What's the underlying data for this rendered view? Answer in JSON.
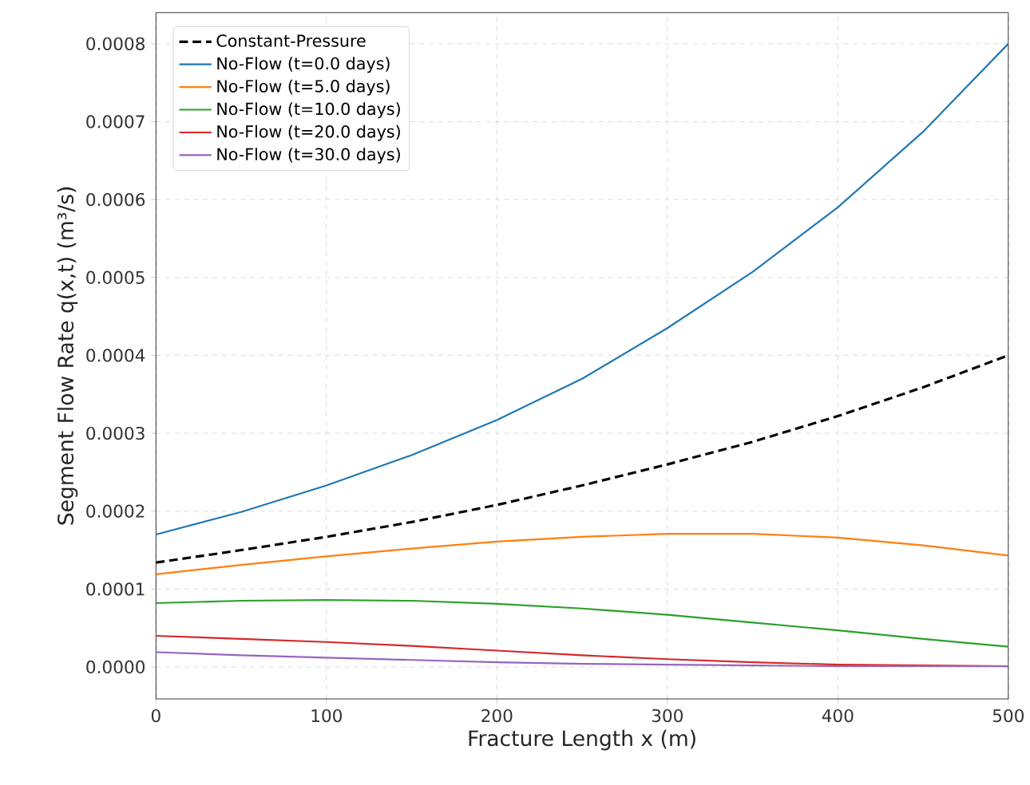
{
  "chart_data": {
    "type": "line",
    "xlabel": "Fracture Length x (m)",
    "ylabel": "Segment Flow Rate q(x,t) (m³/s)",
    "x": [
      0,
      50,
      100,
      150,
      200,
      250,
      300,
      350,
      400,
      450,
      500
    ],
    "series": [
      {
        "name": "Constant-Pressure",
        "color": "#000000",
        "line_style": "dashed",
        "values": [
          0.000134,
          0.00015,
          0.000167,
          0.000186,
          0.000208,
          0.000233,
          0.00026,
          0.000289,
          0.000322,
          0.000359,
          0.0004
        ]
      },
      {
        "name": "No-Flow (t=0.0 days)",
        "color": "#1f77b4",
        "values": [
          0.00017,
          0.000199,
          0.000233,
          0.000272,
          0.000317,
          0.00037,
          0.000435,
          0.000507,
          0.00059,
          0.000687,
          0.0008
        ]
      },
      {
        "name": "No-Flow (t=5.0 days)",
        "color": "#ff7f0e",
        "values": [
          0.000119,
          0.000131,
          0.000142,
          0.000152,
          0.000161,
          0.000167,
          0.000171,
          0.000171,
          0.000166,
          0.000156,
          0.000143
        ]
      },
      {
        "name": "No-Flow (t=10.0 days)",
        "color": "#2ca02c",
        "values": [
          8.2e-05,
          8.5e-05,
          8.6e-05,
          8.5e-05,
          8.1e-05,
          7.5e-05,
          6.7e-05,
          5.7e-05,
          4.7e-05,
          3.6e-05,
          2.6e-05
        ]
      },
      {
        "name": "No-Flow (t=20.0 days)",
        "color": "#d62728",
        "values": [
          4e-05,
          3.6e-05,
          3.2e-05,
          2.7e-05,
          2.1e-05,
          1.5e-05,
          1e-05,
          6e-06,
          3e-06,
          2e-06,
          1e-06
        ]
      },
      {
        "name": "No-Flow (t=30.0 days)",
        "color": "#9467bd",
        "values": [
          1.9e-05,
          1.5e-05,
          1.2e-05,
          9e-06,
          6e-06,
          4e-06,
          3e-06,
          2e-06,
          1e-06,
          1e-06,
          1e-06
        ]
      }
    ],
    "xlim": [
      0,
      500
    ],
    "ylim": [
      -4.1e-05,
      0.00084
    ],
    "xticks": [
      0,
      100,
      200,
      300,
      400,
      500
    ],
    "yticks": [
      {
        "value": 0,
        "label": "0.0000"
      },
      {
        "value": 0.0001,
        "label": "0.0001"
      },
      {
        "value": 0.0002,
        "label": "0.0002"
      },
      {
        "value": 0.0003,
        "label": "0.0003"
      },
      {
        "value": 0.0004,
        "label": "0.0004"
      },
      {
        "value": 0.0005,
        "label": "0.0005"
      },
      {
        "value": 0.0006,
        "label": "0.0006"
      },
      {
        "value": 0.0007,
        "label": "0.0007"
      },
      {
        "value": 0.0008,
        "label": "0.0008"
      }
    ],
    "grid": true,
    "legend": "top left",
    "line_style": "solid"
  }
}
